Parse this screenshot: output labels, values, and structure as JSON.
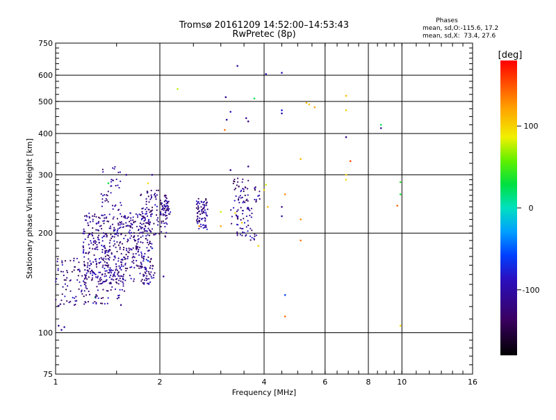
{
  "chart_data": {
    "type": "scatter",
    "title": "Tromsø 20161209 14:52:00–14:53:43",
    "subtitle": "RwPretec (8p)",
    "xlabel": "Frequency [MHz]",
    "ylabel": "Stationary phase Virtual Height [km]",
    "x_scale": "log",
    "y_scale": "log",
    "xlim": [
      1,
      16
    ],
    "ylim": [
      75,
      750
    ],
    "x_ticks": [
      1,
      2,
      4,
      6,
      8,
      10,
      16
    ],
    "y_ticks": [
      75,
      100,
      200,
      300,
      400,
      500,
      600,
      750
    ],
    "grid": true,
    "stats": {
      "heading": "Phases",
      "line1": "mean, sd,O:-115.6, 17.2",
      "line2": "mean, sd,X:  73.4, 27.6"
    },
    "colorbar": {
      "label": "[deg]",
      "range": [
        -180,
        180
      ],
      "ticks": [
        100,
        0,
        -100
      ]
    },
    "points": [
      {
        "x": 1.02,
        "y": 105,
        "c": -110
      },
      {
        "x": 1.04,
        "y": 102,
        "c": -110
      },
      {
        "x": 1.06,
        "y": 104,
        "c": -105
      },
      {
        "x": 1.3,
        "y": 128,
        "c": 25
      },
      {
        "x": 1.42,
        "y": 283,
        "c": 30
      },
      {
        "x": 1.85,
        "y": 283,
        "c": 95
      },
      {
        "x": 2.25,
        "y": 545,
        "c": 75
      },
      {
        "x": 3.35,
        "y": 640,
        "c": -110
      },
      {
        "x": 4.05,
        "y": 605,
        "c": -90
      },
      {
        "x": 4.5,
        "y": 610,
        "c": -95
      },
      {
        "x": 3.75,
        "y": 510,
        "c": 30
      },
      {
        "x": 3.1,
        "y": 515,
        "c": -110
      },
      {
        "x": 3.2,
        "y": 465,
        "c": -90
      },
      {
        "x": 3.12,
        "y": 440,
        "c": -110
      },
      {
        "x": 3.08,
        "y": 410,
        "c": 140
      },
      {
        "x": 3.55,
        "y": 445,
        "c": -110
      },
      {
        "x": 3.6,
        "y": 435,
        "c": -120
      },
      {
        "x": 3.6,
        "y": 318,
        "c": -115
      },
      {
        "x": 4.5,
        "y": 470,
        "c": -80
      },
      {
        "x": 4.5,
        "y": 460,
        "c": -100
      },
      {
        "x": 5.3,
        "y": 495,
        "c": 110
      },
      {
        "x": 5.4,
        "y": 490,
        "c": 105
      },
      {
        "x": 5.6,
        "y": 480,
        "c": 120
      },
      {
        "x": 6.9,
        "y": 520,
        "c": 110
      },
      {
        "x": 6.9,
        "y": 470,
        "c": 100
      },
      {
        "x": 6.9,
        "y": 390,
        "c": -120
      },
      {
        "x": 7.1,
        "y": 330,
        "c": 155
      },
      {
        "x": 6.9,
        "y": 300,
        "c": 100
      },
      {
        "x": 6.9,
        "y": 290,
        "c": 95
      },
      {
        "x": 8.7,
        "y": 425,
        "c": 20
      },
      {
        "x": 8.7,
        "y": 415,
        "c": -110
      },
      {
        "x": 5.1,
        "y": 335,
        "c": 110
      },
      {
        "x": 4.05,
        "y": 280,
        "c": 80
      },
      {
        "x": 4.0,
        "y": 270,
        "c": 100
      },
      {
        "x": 4.6,
        "y": 262,
        "c": 130
      },
      {
        "x": 4.1,
        "y": 240,
        "c": 110
      },
      {
        "x": 4.5,
        "y": 240,
        "c": -120
      },
      {
        "x": 4.5,
        "y": 225,
        "c": -105
      },
      {
        "x": 5.1,
        "y": 220,
        "c": 130
      },
      {
        "x": 5.1,
        "y": 190,
        "c": 140
      },
      {
        "x": 3.85,
        "y": 183,
        "c": 100
      },
      {
        "x": 4.6,
        "y": 130,
        "c": -60
      },
      {
        "x": 4.6,
        "y": 112,
        "c": 140
      },
      {
        "x": 9.9,
        "y": 285,
        "c": 40
      },
      {
        "x": 9.9,
        "y": 262,
        "c": 35
      },
      {
        "x": 9.7,
        "y": 242,
        "c": 145
      },
      {
        "x": 9.9,
        "y": 105,
        "c": 95
      },
      {
        "x": 3.0,
        "y": 232,
        "c": 80
      },
      {
        "x": 3.3,
        "y": 230,
        "c": 100
      },
      {
        "x": 3.45,
        "y": 215,
        "c": 105
      },
      {
        "x": 3.0,
        "y": 210,
        "c": 120
      },
      {
        "x": 2.6,
        "y": 210,
        "c": 130
      },
      {
        "x": 1.6,
        "y": 300,
        "c": -115
      },
      {
        "x": 1.9,
        "y": 300,
        "c": -110
      },
      {
        "x": 3.2,
        "y": 310,
        "c": -115
      },
      {
        "x": 2.05,
        "y": 148,
        "c": -110
      },
      {
        "x": 1.9,
        "y": 180,
        "c": -70
      },
      {
        "x": 1.8,
        "y": 170,
        "c": -80
      },
      {
        "x": 1.85,
        "y": 165,
        "c": -60
      }
    ]
  }
}
